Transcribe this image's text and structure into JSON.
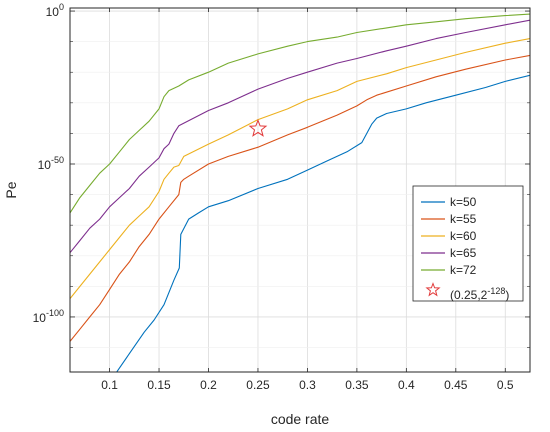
{
  "chart_data": {
    "type": "line",
    "title": "",
    "xlabel": "code rate",
    "ylabel": "Pe",
    "xlim": [
      0.06,
      0.525
    ],
    "ylim_log10": [
      -118,
      1
    ],
    "y_scale": "log",
    "grid": true,
    "legend_position": "lower-right",
    "x_ticks": [
      0.1,
      0.15,
      0.2,
      0.25,
      0.3,
      0.35,
      0.4,
      0.45,
      0.5
    ],
    "x_tick_labels": [
      "0.1",
      "0.15",
      "0.2",
      "0.25",
      "0.3",
      "0.35",
      "0.4",
      "0.45",
      "0.5"
    ],
    "y_ticks_log10": [
      0,
      -50,
      -100
    ],
    "y_tick_labels": [
      {
        "base": "10",
        "exp": "0"
      },
      {
        "base": "10",
        "exp": "-50"
      },
      {
        "base": "10",
        "exp": "-100"
      }
    ],
    "series": [
      {
        "name": "k=50",
        "color": "#0072BD",
        "x": [
          0.103,
          0.12,
          0.135,
          0.145,
          0.155,
          0.165,
          0.1705,
          0.172,
          0.18,
          0.19,
          0.2,
          0.22,
          0.25,
          0.28,
          0.3,
          0.32,
          0.34,
          0.355,
          0.36,
          0.365,
          0.37,
          0.38,
          0.4,
          0.42,
          0.45,
          0.48,
          0.5,
          0.525
        ],
        "y_log10": [
          -120,
          -112,
          -105,
          -101,
          -96,
          -88,
          -84,
          -73,
          -68,
          -66,
          -64,
          -62,
          -58,
          -55,
          -52,
          -49,
          -46,
          -43,
          -40,
          -37,
          -35,
          -33.5,
          -32,
          -30,
          -27.5,
          -25,
          -23,
          -21
        ]
      },
      {
        "name": "k=55",
        "color": "#D95319",
        "x": [
          0.06,
          0.07,
          0.08,
          0.09,
          0.1,
          0.11,
          0.12,
          0.13,
          0.14,
          0.15,
          0.16,
          0.17,
          0.172,
          0.175,
          0.18,
          0.2,
          0.22,
          0.25,
          0.28,
          0.3,
          0.33,
          0.35,
          0.36,
          0.37,
          0.4,
          0.43,
          0.46,
          0.5,
          0.525
        ],
        "y_log10": [
          -108,
          -104,
          -100,
          -96,
          -91,
          -86,
          -82,
          -77,
          -73,
          -68,
          -64,
          -60,
          -56,
          -55,
          -54,
          -50,
          -47.5,
          -44.5,
          -40.5,
          -38,
          -34,
          -31,
          -29,
          -27.5,
          -24.5,
          -21.5,
          -19,
          -16,
          -14.5
        ]
      },
      {
        "name": "k=60",
        "color": "#EDB120",
        "x": [
          0.06,
          0.07,
          0.08,
          0.09,
          0.1,
          0.11,
          0.12,
          0.13,
          0.14,
          0.15,
          0.155,
          0.16,
          0.165,
          0.17,
          0.175,
          0.2,
          0.22,
          0.25,
          0.28,
          0.3,
          0.33,
          0.35,
          0.38,
          0.4,
          0.43,
          0.46,
          0.5,
          0.525
        ],
        "y_log10": [
          -94,
          -90,
          -86,
          -82,
          -78,
          -74,
          -70,
          -67,
          -64,
          -59,
          -55,
          -53,
          -51,
          -50.5,
          -47.5,
          -43.5,
          -40.5,
          -35.5,
          -32,
          -29,
          -26,
          -23,
          -20.5,
          -18.5,
          -16,
          -13.5,
          -10.5,
          -9
        ]
      },
      {
        "name": "k=65",
        "color": "#7E2F8E",
        "x": [
          0.06,
          0.07,
          0.08,
          0.09,
          0.1,
          0.11,
          0.12,
          0.13,
          0.14,
          0.15,
          0.155,
          0.16,
          0.165,
          0.17,
          0.2,
          0.22,
          0.25,
          0.28,
          0.3,
          0.33,
          0.35,
          0.38,
          0.4,
          0.43,
          0.46,
          0.5,
          0.525
        ],
        "y_log10": [
          -79,
          -75,
          -71,
          -68,
          -64,
          -61,
          -58,
          -54,
          -51,
          -48,
          -45,
          -43.5,
          -40,
          -37.5,
          -32.5,
          -30,
          -25.5,
          -22,
          -20,
          -17,
          -15.5,
          -13,
          -11.5,
          -9,
          -7,
          -4.5,
          -3
        ]
      },
      {
        "name": "k=72",
        "color": "#77AC30",
        "x": [
          0.06,
          0.07,
          0.08,
          0.09,
          0.1,
          0.11,
          0.12,
          0.13,
          0.14,
          0.15,
          0.155,
          0.16,
          0.17,
          0.18,
          0.2,
          0.22,
          0.25,
          0.28,
          0.3,
          0.33,
          0.35,
          0.38,
          0.4,
          0.43,
          0.46,
          0.5,
          0.525
        ],
        "y_log10": [
          -66,
          -61,
          -57,
          -53,
          -50,
          -46,
          -42,
          -39,
          -36,
          -32,
          -28,
          -26,
          -24.5,
          -22.5,
          -20,
          -17,
          -14,
          -11.5,
          -10,
          -8.5,
          -7,
          -5.5,
          -4.5,
          -3.5,
          -2.5,
          -1.5,
          -1
        ]
      }
    ],
    "marker_point": {
      "label_base": "(0.25,2",
      "label_exp": "-128",
      "label_close": ")",
      "x": 0.25,
      "y_log10": -38.5,
      "color": "#E23B3B",
      "shape": "star"
    }
  }
}
